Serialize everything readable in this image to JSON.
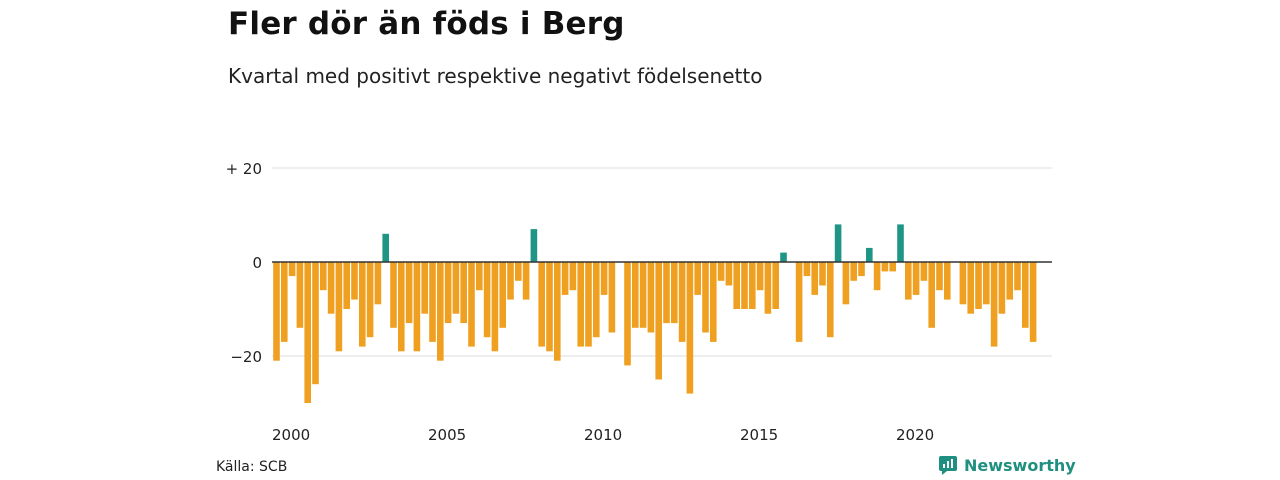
{
  "title": "Fler dör än föds i Berg",
  "subtitle": "Kvartal med positivt respektive negativt födelsenetto",
  "source": "Källa: SCB",
  "brand": {
    "name": "Newsworthy",
    "icon": "newsworthy-logo-icon"
  },
  "colors": {
    "positive": "#1f9685",
    "negative": "#f0a020",
    "grid": "#dddddd",
    "zero": "#333333",
    "brand": "#1f8f80"
  },
  "chart_data": {
    "type": "bar",
    "x_start": 2000,
    "period": "quarter",
    "ylim": [
      -32,
      22
    ],
    "yticks": [
      20,
      0,
      -20
    ],
    "ytick_labels": [
      "+ 20",
      "0",
      "−20"
    ],
    "xticks": [
      2000,
      2005,
      2010,
      2015,
      2020
    ],
    "xtick_labels": [
      "2000",
      "2005",
      "2010",
      "2015",
      "2020"
    ],
    "grid": true,
    "values": [
      -21,
      -17,
      -3,
      -14,
      -30,
      -26,
      -6,
      -11,
      -19,
      -10,
      -8,
      -18,
      -16,
      -9,
      6,
      -14,
      -19,
      -13,
      -19,
      -11,
      -17,
      -21,
      -13,
      -11,
      -13,
      -18,
      -6,
      -16,
      -19,
      -14,
      -8,
      -4,
      -8,
      7,
      -18,
      -19,
      -21,
      -7,
      -6,
      -18,
      -18,
      -16,
      -7,
      -15,
      0,
      -22,
      -14,
      -14,
      -15,
      -25,
      -13,
      -13,
      -17,
      -28,
      -7,
      -15,
      -17,
      -4,
      -5,
      -10,
      -10,
      -10,
      -6,
      -11,
      -10,
      2,
      0,
      -17,
      -3,
      -7,
      -5,
      -16,
      8,
      -9,
      -4,
      -3,
      3,
      -6,
      -2,
      -2,
      8,
      -8,
      -7,
      -4,
      -14,
      -6,
      -8,
      0,
      -9,
      -11,
      -10,
      -9,
      -18,
      -11,
      -8,
      -6,
      -14,
      -17
    ]
  }
}
